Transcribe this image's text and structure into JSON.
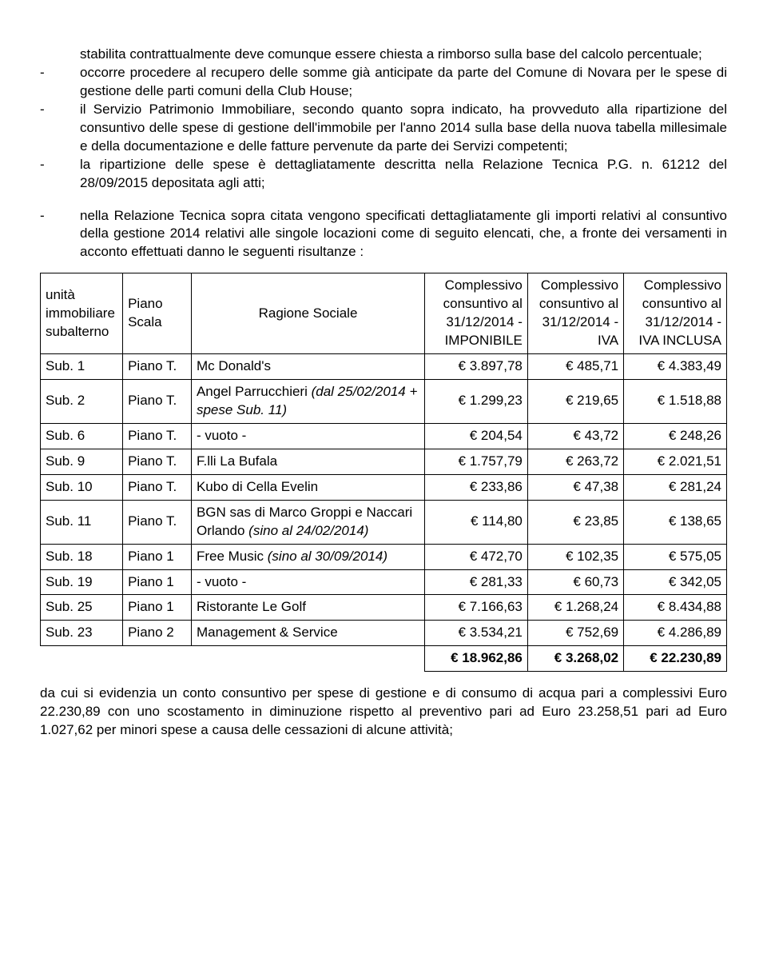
{
  "para1_cont": "stabilita contrattualmente deve comunque essere chiesta a rimborso sulla base del calcolo percentuale;",
  "bullet1": "occorre procedere al recupero delle somme già anticipate da parte del Comune di Novara per le spese di gestione delle parti comuni della Club House;",
  "bullet2": "il Servizio Patrimonio Immobiliare, secondo quanto sopra indicato, ha provveduto alla ripartizione del consuntivo delle spese di gestione dell'immobile per l'anno 2014 sulla base della nuova tabella millesimale e della documentazione e delle fatture pervenute da parte dei Servizi competenti;",
  "bullet3": "la ripartizione delle spese è dettagliatamente descritta nella Relazione Tecnica P.G. n. 61212 del 28/09/2015 depositata agli atti;",
  "bullet4": "nella Relazione Tecnica sopra citata vengono specificati dettagliatamente gli importi relativi al consuntivo della gestione 2014 relativi alle singole locazioni come di seguito elencati, che, a fronte dei versamenti in acconto effettuati danno le seguenti risultanze :",
  "table": {
    "headers": {
      "unit": "unità immobiliare subalterno",
      "piano": "Piano Scala",
      "ragione": "Ragione Sociale",
      "c1": "Complessivo consuntivo al 31/12/2014 - IMPONIBILE",
      "c2": "Complessivo consuntivo al 31/12/2014 - IVA",
      "c3": "Complessivo consuntivo al 31/12/2014 - IVA INCLUSA"
    },
    "rows": [
      {
        "u": "Sub. 1",
        "p": "Piano T.",
        "r": "Mc Donald's",
        "v1": "€ 3.897,78",
        "v2": "€ 485,71",
        "v3": "€ 4.383,49"
      },
      {
        "u": "Sub. 2",
        "p": "Piano T.",
        "r": "Angel Parrucchieri",
        "ri": "(dal 25/02/2014 + spese Sub. 11)",
        "v1": "€ 1.299,23",
        "v2": "€ 219,65",
        "v3": "€ 1.518,88"
      },
      {
        "u": "Sub. 6",
        "p": "Piano T.",
        "r": "- vuoto -",
        "v1": "€ 204,54",
        "v2": "€ 43,72",
        "v3": "€ 248,26"
      },
      {
        "u": "Sub. 9",
        "p": "Piano T.",
        "r": "F.lli La Bufala",
        "v1": "€ 1.757,79",
        "v2": "€ 263,72",
        "v3": "€ 2.021,51"
      },
      {
        "u": "Sub. 10",
        "p": "Piano T.",
        "r": "Kubo di Cella Evelin",
        "v1": "€ 233,86",
        "v2": "€ 47,38",
        "v3": "€ 281,24"
      },
      {
        "u": "Sub. 11",
        "p": "Piano T.",
        "r": "BGN sas di Marco Groppi e Naccari Orlando",
        "ri": "(sino al 24/02/2014)",
        "v1": "€ 114,80",
        "v2": "€ 23,85",
        "v3": "€ 138,65"
      },
      {
        "u": "Sub. 18",
        "p": "Piano 1",
        "r": "Free Music",
        "ri": "(sino al 30/09/2014)",
        "v1": "€ 472,70",
        "v2": "€ 102,35",
        "v3": "€ 575,05"
      },
      {
        "u": "Sub. 19",
        "p": "Piano 1",
        "r": "- vuoto -",
        "v1": "€ 281,33",
        "v2": "€ 60,73",
        "v3": "€ 342,05"
      },
      {
        "u": "Sub. 25",
        "p": "Piano 1",
        "r": "Ristorante Le Golf",
        "v1": "€ 7.166,63",
        "v2": "€ 1.268,24",
        "v3": "€ 8.434,88"
      },
      {
        "u": "Sub. 23",
        "p": "Piano 2",
        "r": "Management & Service",
        "v1": "€ 3.534,21",
        "v2": "€ 752,69",
        "v3": "€ 4.286,89"
      }
    ],
    "totals": {
      "v1": "€ 18.962,86",
      "v2": "€ 3.268,02",
      "v3": "€ 22.230,89"
    }
  },
  "bottom": "da cui si evidenzia un conto consuntivo per spese di gestione e di consumo di acqua pari a complessivi Euro 22.230,89 con uno scostamento in diminuzione rispetto al preventivo pari ad Euro 23.258,51 pari ad Euro 1.027,62 per minori spese a causa delle cessazioni di alcune attività;"
}
